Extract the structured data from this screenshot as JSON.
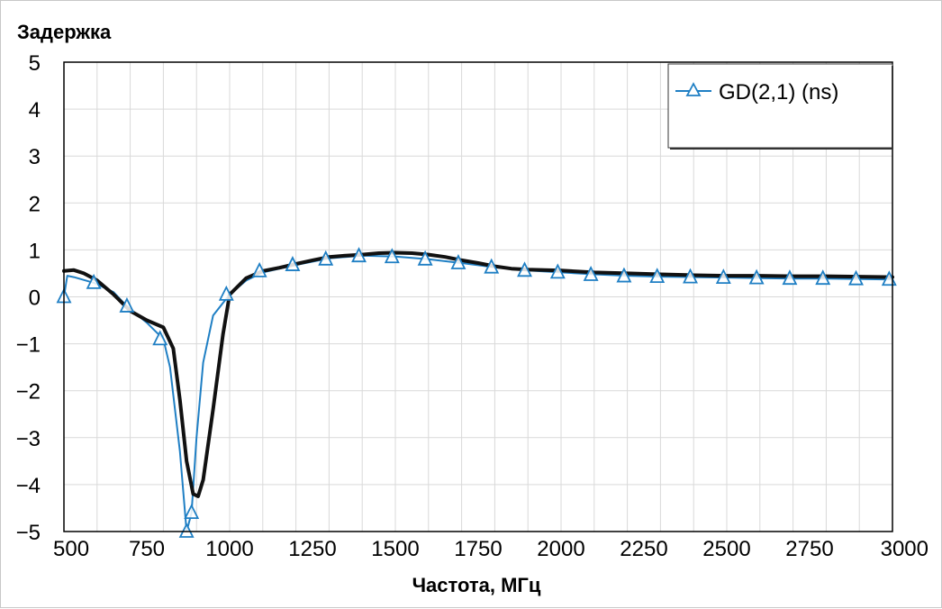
{
  "chart_data": {
    "type": "line",
    "ylabel": "Задержка",
    "xlabel": "Частота, МГц",
    "xlim": [
      500,
      3000
    ],
    "ylim": [
      -5,
      5
    ],
    "x_ticks": [
      500,
      750,
      1000,
      1250,
      1500,
      1750,
      2000,
      2250,
      2500,
      2750,
      3000
    ],
    "x_tick_labels": [
      "500",
      "750",
      "1000",
      "1250",
      "1500",
      "1750",
      "2000",
      "2250",
      "2500",
      "2750",
      "3000"
    ],
    "y_ticks": [
      5,
      4,
      3,
      2,
      1,
      0,
      -1,
      -2,
      -3,
      -4,
      -5
    ],
    "y_tick_labels": [
      "5",
      "4",
      "3",
      "2",
      "1",
      "0",
      "−1",
      "−2",
      "−3",
      "−4",
      "−5"
    ],
    "grid": true,
    "legend_position": "top-right",
    "colors": {
      "series_blue": "#1f7fc4",
      "series_black": "#111111",
      "grid": "#d9d9d9"
    },
    "series": [
      {
        "name": "GD(2,1) (ns)",
        "marker": "triangle",
        "x": [
          500,
          510,
          530,
          590,
          650,
          690,
          750,
          800,
          820,
          850,
          870,
          885,
          900,
          920,
          950,
          1000,
          1050,
          1100,
          1200,
          1300,
          1400,
          1500,
          1600,
          1700,
          1800,
          1900,
          2000,
          2100,
          2200,
          2300,
          2400,
          2500,
          2600,
          2700,
          2800,
          2900,
          3000
        ],
        "y": [
          0.0,
          0.45,
          0.42,
          0.3,
          0.1,
          -0.2,
          -0.55,
          -0.9,
          -1.5,
          -3.3,
          -5.0,
          -4.6,
          -3.0,
          -1.4,
          -0.4,
          0.05,
          0.35,
          0.52,
          0.68,
          0.82,
          0.88,
          0.86,
          0.8,
          0.72,
          0.63,
          0.56,
          0.52,
          0.48,
          0.45,
          0.43,
          0.42,
          0.41,
          0.4,
          0.39,
          0.39,
          0.38,
          0.37
        ],
        "marker_x": [
          500,
          590,
          690,
          790,
          870,
          885,
          990,
          1090,
          1190,
          1290,
          1390,
          1490,
          1590,
          1690,
          1790,
          1890,
          1990,
          2090,
          2190,
          2290,
          2390,
          2490,
          2590,
          2690,
          2790,
          2890,
          2990
        ],
        "marker_y": [
          0.0,
          0.3,
          -0.2,
          -0.9,
          -5.0,
          -4.6,
          0.05,
          0.55,
          0.68,
          0.8,
          0.87,
          0.85,
          0.8,
          0.72,
          0.63,
          0.56,
          0.52,
          0.47,
          0.44,
          0.43,
          0.42,
          0.41,
          0.4,
          0.39,
          0.39,
          0.38,
          0.37
        ]
      },
      {
        "x": [
          500,
          530,
          560,
          600,
          650,
          700,
          750,
          800,
          830,
          850,
          870,
          890,
          905,
          920,
          950,
          980,
          1000,
          1050,
          1100,
          1150,
          1200,
          1250,
          1300,
          1350,
          1400,
          1450,
          1500,
          1550,
          1600,
          1650,
          1700,
          1750,
          1800,
          1850,
          1900,
          2000,
          2100,
          2200,
          2300,
          2400,
          2500,
          2600,
          2700,
          2800,
          2900,
          3000
        ],
        "y": [
          0.55,
          0.57,
          0.5,
          0.35,
          0.05,
          -0.3,
          -0.5,
          -0.65,
          -1.1,
          -2.2,
          -3.5,
          -4.2,
          -4.25,
          -3.9,
          -2.4,
          -0.8,
          0.05,
          0.4,
          0.55,
          0.62,
          0.7,
          0.78,
          0.85,
          0.88,
          0.9,
          0.93,
          0.94,
          0.93,
          0.9,
          0.85,
          0.78,
          0.72,
          0.65,
          0.6,
          0.58,
          0.56,
          0.52,
          0.5,
          0.48,
          0.46,
          0.45,
          0.45,
          0.44,
          0.44,
          0.43,
          0.42
        ]
      }
    ]
  }
}
